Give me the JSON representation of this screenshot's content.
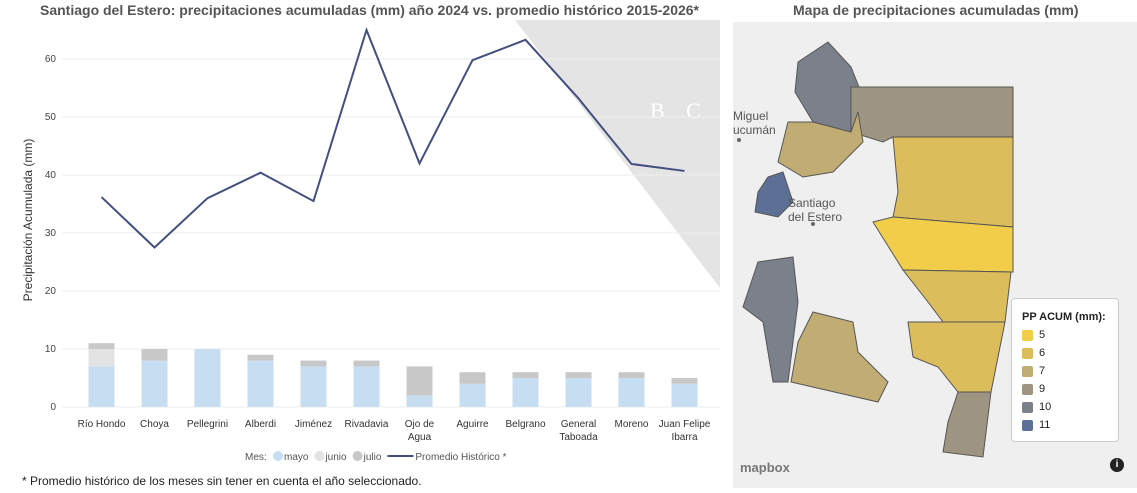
{
  "chart_title": "Santiago del Estero: precipitaciones acumuladas (mm) año 2024 vs. promedio histórico 2015-2026*",
  "map_title": "Mapa de precipitaciones acumuladas (mm)",
  "footnote": "* Promedio histórico de los meses sin tener en cuenta el año seleccionado.",
  "watermark": "BCCBA",
  "chart_data": {
    "type": "bar",
    "title": "Santiago del Estero: precipitaciones acumuladas (mm) año 2024 vs. promedio histórico 2015-2026*",
    "ylabel": "Precipitación Acumulada (mm)",
    "xlabel": "",
    "ylim": [
      0,
      66
    ],
    "yticks": [
      0,
      10,
      20,
      30,
      40,
      50,
      60
    ],
    "categories": [
      "Río Hondo",
      "Choya",
      "Pellegrini",
      "Alberdi",
      "Jiménez",
      "Rivadavia",
      "Ojo de Agua",
      "Aguirre",
      "Belgrano",
      "General Taboada",
      "Moreno",
      "Juan Felipe Ibarra"
    ],
    "legend_title": "Mes:",
    "series": [
      {
        "name": "mayo",
        "type": "stacked-bar",
        "color": "#c6ddf2",
        "values": [
          7,
          8,
          10,
          8,
          7,
          7,
          2,
          4,
          5,
          5,
          5,
          4
        ]
      },
      {
        "name": "junio",
        "type": "stacked-bar",
        "color": "#e3e3e3",
        "values": [
          3,
          0,
          0,
          0,
          0,
          0,
          0,
          0,
          0,
          0,
          0,
          0
        ]
      },
      {
        "name": "julio",
        "type": "stacked-bar",
        "color": "#c8c8c8",
        "values": [
          1,
          2,
          0,
          1,
          1,
          1,
          5,
          2,
          1,
          1,
          1,
          1
        ]
      },
      {
        "name": "Promedio Histórico *",
        "type": "line",
        "color": "#454f7f",
        "values": [
          36.2,
          27.5,
          36,
          40.4,
          35.5,
          65,
          42,
          59.8,
          63.3,
          53.2,
          41.9,
          40.7
        ]
      }
    ]
  },
  "map": {
    "places": [
      "Miguel",
      "ucumán",
      "Santiago",
      "del Estero"
    ],
    "legend_title": "PP ACUM (mm):",
    "legend": [
      {
        "label": "5",
        "color": "#f2cd4a"
      },
      {
        "label": "6",
        "color": "#dcbd5c"
      },
      {
        "label": "7",
        "color": "#c1ad74"
      },
      {
        "label": "9",
        "color": "#9d9581"
      },
      {
        "label": "10",
        "color": "#7b808a"
      },
      {
        "label": "11",
        "color": "#5d6f94"
      }
    ],
    "attribution": "mapbox",
    "info": "i"
  }
}
